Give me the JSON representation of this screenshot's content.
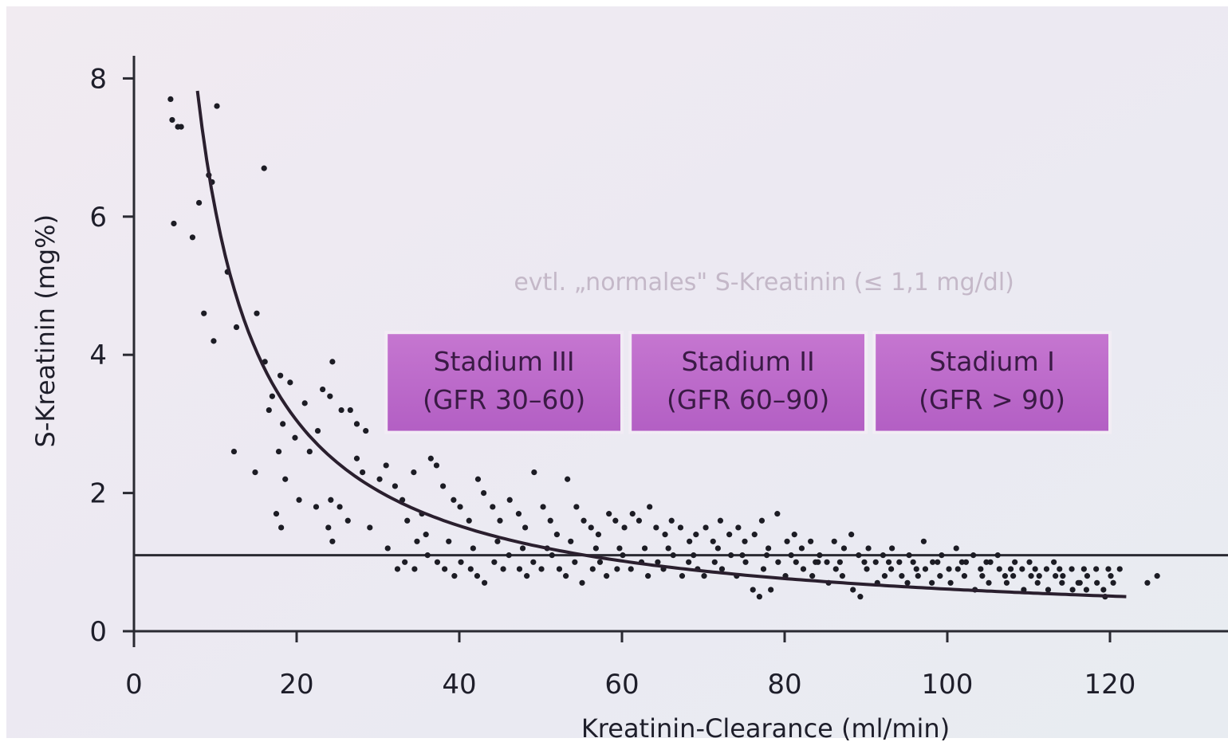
{
  "chart_data": {
    "type": "scatter",
    "title": "",
    "xlabel": "Kreatinin-Clearance (ml/min)",
    "ylabel": "S-Kreatinin (mg%)",
    "xlim": [
      0,
      130
    ],
    "ylim": [
      0,
      8.2
    ],
    "x_ticks": [
      0,
      20,
      40,
      60,
      80,
      100,
      120
    ],
    "y_ticks": [
      0,
      2,
      4,
      6,
      8
    ],
    "grid": false,
    "reference_line": {
      "y": 1.1
    },
    "curve": {
      "name": "",
      "formula": "y = 61 / x",
      "x_range": [
        7.8,
        122
      ]
    },
    "annotation": "evtl. „normales\" S-Kreatinin (≤ 1,1 mg/dl)",
    "stages": [
      {
        "line1": "Stadium III",
        "line2": "(GFR 30–60)",
        "x_start": 31,
        "x_end": 60,
        "y_top": 4.3,
        "y_bottom": 2.9
      },
      {
        "line1": "Stadium II",
        "line2": "(GFR 60–90)",
        "x_start": 61,
        "x_end": 90,
        "y_top": 4.3,
        "y_bottom": 2.9
      },
      {
        "line1": "Stadium I",
        "line2": "(GFR > 90)",
        "x_start": 91,
        "x_end": 120,
        "y_top": 4.3,
        "y_bottom": 2.9
      }
    ],
    "points": [
      [
        4.5,
        7.7
      ],
      [
        4.7,
        7.4
      ],
      [
        5.4,
        7.3
      ],
      [
        5.8,
        7.3
      ],
      [
        10.2,
        7.6
      ],
      [
        4.9,
        5.9
      ],
      [
        7.2,
        5.7
      ],
      [
        9.2,
        6.6
      ],
      [
        9.6,
        6.5
      ],
      [
        8.0,
        6.2
      ],
      [
        16.0,
        6.7
      ],
      [
        11.5,
        5.2
      ],
      [
        8.6,
        4.6
      ],
      [
        9.8,
        4.2
      ],
      [
        12.6,
        4.4
      ],
      [
        15.1,
        4.6
      ],
      [
        16.1,
        3.9
      ],
      [
        17.0,
        3.4
      ],
      [
        16.6,
        3.2
      ],
      [
        18.0,
        3.7
      ],
      [
        19.2,
        3.6
      ],
      [
        21.0,
        3.3
      ],
      [
        18.3,
        3.0
      ],
      [
        19.8,
        2.8
      ],
      [
        21.6,
        2.6
      ],
      [
        22.6,
        2.9
      ],
      [
        23.2,
        3.5
      ],
      [
        24.1,
        3.4
      ],
      [
        24.4,
        3.9
      ],
      [
        25.5,
        3.2
      ],
      [
        26.6,
        3.2
      ],
      [
        27.4,
        3.0
      ],
      [
        28.5,
        2.9
      ],
      [
        12.3,
        2.6
      ],
      [
        14.9,
        2.3
      ],
      [
        17.8,
        2.6
      ],
      [
        18.6,
        2.2
      ],
      [
        20.3,
        1.9
      ],
      [
        22.4,
        1.8
      ],
      [
        24.2,
        1.9
      ],
      [
        25.3,
        1.8
      ],
      [
        17.5,
        1.7
      ],
      [
        18.1,
        1.5
      ],
      [
        23.9,
        1.5
      ],
      [
        24.4,
        1.3
      ],
      [
        26.3,
        1.6
      ],
      [
        27.4,
        2.5
      ],
      [
        28.1,
        2.3
      ],
      [
        29.0,
        1.5
      ],
      [
        30.2,
        2.2
      ],
      [
        31.0,
        2.4
      ],
      [
        32.1,
        2.1
      ],
      [
        33.0,
        1.9
      ],
      [
        33.6,
        1.6
      ],
      [
        34.4,
        2.3
      ],
      [
        35.4,
        1.7
      ],
      [
        36.5,
        2.5
      ],
      [
        37.2,
        2.4
      ],
      [
        38.0,
        2.1
      ],
      [
        39.3,
        1.9
      ],
      [
        40.1,
        1.8
      ],
      [
        41.2,
        1.6
      ],
      [
        42.3,
        2.2
      ],
      [
        43.0,
        2.0
      ],
      [
        44.1,
        1.8
      ],
      [
        45.0,
        1.6
      ],
      [
        46.2,
        1.9
      ],
      [
        47.3,
        1.7
      ],
      [
        48.1,
        1.5
      ],
      [
        49.2,
        2.3
      ],
      [
        50.3,
        1.8
      ],
      [
        51.2,
        1.6
      ],
      [
        52.0,
        1.4
      ],
      [
        53.3,
        2.2
      ],
      [
        54.4,
        1.8
      ],
      [
        55.3,
        1.6
      ],
      [
        56.2,
        1.5
      ],
      [
        57.1,
        1.4
      ],
      [
        58.4,
        1.7
      ],
      [
        59.2,
        1.6
      ],
      [
        60.3,
        1.5
      ],
      [
        61.3,
        1.7
      ],
      [
        62.1,
        1.6
      ],
      [
        63.4,
        1.8
      ],
      [
        64.2,
        1.5
      ],
      [
        65.3,
        1.4
      ],
      [
        66.1,
        1.6
      ],
      [
        67.2,
        1.5
      ],
      [
        68.3,
        1.3
      ],
      [
        69.1,
        1.4
      ],
      [
        70.3,
        1.5
      ],
      [
        71.2,
        1.3
      ],
      [
        72.1,
        1.6
      ],
      [
        73.2,
        1.4
      ],
      [
        74.3,
        1.5
      ],
      [
        75.1,
        1.3
      ],
      [
        76.3,
        1.4
      ],
      [
        77.2,
        1.6
      ],
      [
        78.0,
        1.2
      ],
      [
        79.1,
        1.7
      ],
      [
        80.3,
        1.3
      ],
      [
        81.2,
        1.4
      ],
      [
        82.1,
        1.2
      ],
      [
        83.2,
        1.3
      ],
      [
        84.3,
        1.1
      ],
      [
        85.2,
        1.0
      ],
      [
        86.1,
        1.3
      ],
      [
        87.3,
        1.2
      ],
      [
        88.2,
        1.4
      ],
      [
        89.1,
        1.1
      ],
      [
        90.3,
        1.2
      ],
      [
        91.2,
        1.0
      ],
      [
        92.1,
        1.1
      ],
      [
        93.2,
        1.2
      ],
      [
        94.1,
        1.0
      ],
      [
        95.3,
        1.1
      ],
      [
        96.2,
        0.9
      ],
      [
        97.1,
        1.3
      ],
      [
        98.2,
        1.0
      ],
      [
        99.3,
        1.1
      ],
      [
        100.2,
        0.9
      ],
      [
        101.1,
        1.2
      ],
      [
        102.3,
        1.0
      ],
      [
        103.2,
        1.1
      ],
      [
        104.1,
        0.9
      ],
      [
        105.3,
        1.0
      ],
      [
        106.2,
        1.1
      ],
      [
        107.1,
        0.8
      ],
      [
        108.3,
        1.0
      ],
      [
        109.2,
        0.9
      ],
      [
        110.1,
        1.0
      ],
      [
        111.3,
        0.8
      ],
      [
        112.2,
        0.9
      ],
      [
        113.1,
        1.0
      ],
      [
        114.2,
        0.8
      ],
      [
        115.3,
        0.9
      ],
      [
        116.1,
        0.7
      ],
      [
        117.2,
        0.8
      ],
      [
        118.3,
        0.9
      ],
      [
        119.2,
        0.6
      ],
      [
        120.1,
        0.8
      ],
      [
        121.2,
        0.9
      ],
      [
        124.6,
        0.7
      ],
      [
        125.8,
        0.8
      ],
      [
        31.2,
        1.2
      ],
      [
        32.4,
        0.9
      ],
      [
        33.3,
        1.0
      ],
      [
        34.5,
        0.9
      ],
      [
        36.1,
        1.1
      ],
      [
        37.3,
        1.0
      ],
      [
        38.2,
        0.9
      ],
      [
        39.4,
        0.8
      ],
      [
        40.2,
        1.0
      ],
      [
        41.4,
        0.9
      ],
      [
        42.2,
        0.8
      ],
      [
        43.1,
        0.7
      ],
      [
        44.3,
        1.0
      ],
      [
        45.4,
        0.9
      ],
      [
        46.1,
        1.1
      ],
      [
        47.4,
        0.9
      ],
      [
        48.3,
        0.8
      ],
      [
        49.1,
        1.0
      ],
      [
        50.1,
        0.9
      ],
      [
        51.4,
        1.1
      ],
      [
        52.3,
        0.9
      ],
      [
        53.1,
        0.8
      ],
      [
        54.2,
        1.0
      ],
      [
        55.1,
        0.7
      ],
      [
        56.4,
        0.9
      ],
      [
        57.3,
        1.0
      ],
      [
        58.1,
        0.8
      ],
      [
        59.4,
        0.9
      ],
      [
        60.1,
        1.1
      ],
      [
        61.1,
        0.9
      ],
      [
        62.4,
        1.0
      ],
      [
        63.2,
        0.8
      ],
      [
        64.4,
        1.0
      ],
      [
        65.1,
        0.9
      ],
      [
        66.3,
        1.1
      ],
      [
        67.4,
        0.8
      ],
      [
        68.2,
        1.0
      ],
      [
        69.3,
        0.9
      ],
      [
        70.1,
        0.8
      ],
      [
        71.4,
        1.0
      ],
      [
        72.3,
        0.9
      ],
      [
        73.4,
        1.1
      ],
      [
        74.1,
        0.8
      ],
      [
        75.2,
        1.0
      ],
      [
        76.1,
        0.6
      ],
      [
        76.9,
        0.5
      ],
      [
        77.4,
        0.9
      ],
      [
        78.3,
        0.6
      ],
      [
        79.2,
        1.0
      ],
      [
        80.1,
        0.8
      ],
      [
        81.4,
        1.0
      ],
      [
        82.3,
        0.9
      ],
      [
        83.4,
        0.8
      ],
      [
        84.1,
        1.0
      ],
      [
        85.4,
        0.7
      ],
      [
        86.3,
        0.9
      ],
      [
        87.1,
        0.8
      ],
      [
        88.4,
        0.6
      ],
      [
        89.3,
        0.5
      ],
      [
        90.1,
        0.9
      ],
      [
        91.4,
        0.7
      ],
      [
        92.3,
        0.8
      ],
      [
        93.1,
        0.9
      ],
      [
        94.4,
        0.8
      ],
      [
        95.1,
        0.7
      ],
      [
        96.4,
        0.8
      ],
      [
        97.3,
        0.9
      ],
      [
        98.1,
        0.7
      ],
      [
        99.1,
        0.8
      ],
      [
        100.4,
        0.7
      ],
      [
        101.3,
        0.9
      ],
      [
        102.1,
        0.8
      ],
      [
        103.4,
        0.6
      ],
      [
        104.3,
        0.8
      ],
      [
        105.1,
        0.7
      ],
      [
        106.4,
        0.9
      ],
      [
        107.3,
        0.7
      ],
      [
        108.1,
        0.8
      ],
      [
        109.4,
        0.6
      ],
      [
        110.3,
        0.8
      ],
      [
        111.1,
        0.7
      ],
      [
        112.4,
        0.6
      ],
      [
        113.3,
        0.8
      ],
      [
        114.1,
        0.7
      ],
      [
        115.4,
        0.6
      ],
      [
        116.3,
        0.7
      ],
      [
        117.1,
        0.6
      ],
      [
        118.4,
        0.7
      ],
      [
        119.4,
        0.5
      ],
      [
        120.4,
        0.7
      ],
      [
        34.8,
        1.3
      ],
      [
        35.9,
        1.4
      ],
      [
        38.7,
        1.3
      ],
      [
        41.7,
        1.2
      ],
      [
        44.7,
        1.3
      ],
      [
        47.8,
        1.2
      ],
      [
        50.8,
        1.2
      ],
      [
        53.7,
        1.3
      ],
      [
        56.8,
        1.2
      ],
      [
        59.7,
        1.2
      ],
      [
        62.8,
        1.2
      ],
      [
        65.7,
        1.2
      ],
      [
        68.8,
        1.1
      ],
      [
        71.8,
        1.2
      ],
      [
        74.8,
        1.1
      ],
      [
        77.8,
        1.1
      ],
      [
        80.8,
        1.1
      ],
      [
        83.8,
        1.0
      ],
      [
        86.8,
        1.0
      ],
      [
        89.8,
        1.0
      ],
      [
        92.8,
        1.0
      ],
      [
        95.8,
        1.0
      ],
      [
        98.8,
        1.0
      ],
      [
        101.8,
        1.0
      ],
      [
        104.8,
        1.0
      ],
      [
        107.8,
        0.9
      ],
      [
        110.8,
        0.9
      ],
      [
        113.8,
        0.9
      ],
      [
        116.8,
        0.9
      ],
      [
        119.8,
        0.9
      ]
    ]
  }
}
